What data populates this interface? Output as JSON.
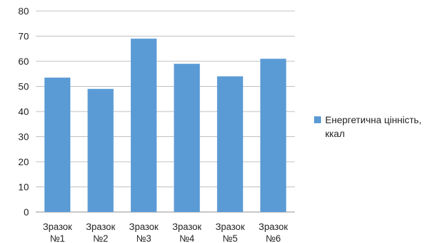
{
  "chart_data": {
    "type": "bar",
    "categories": [
      [
        "Зразок",
        "№1"
      ],
      [
        "Зразок",
        "№2"
      ],
      [
        "Зразок",
        "№3"
      ],
      [
        "Зразок",
        "№4"
      ],
      [
        "Зразок",
        "№5"
      ],
      [
        "Зразок",
        "№6"
      ]
    ],
    "series": [
      {
        "name_lines": [
          "Енергетична цінність,",
          "ккал"
        ],
        "color": "#5b9bd5",
        "values": [
          53.5,
          49,
          69,
          59,
          54,
          61
        ]
      }
    ],
    "ylim": [
      0,
      80
    ],
    "yticks": [
      0,
      10,
      20,
      30,
      40,
      50,
      60,
      70,
      80
    ],
    "grid": true,
    "legend_position": "right"
  }
}
